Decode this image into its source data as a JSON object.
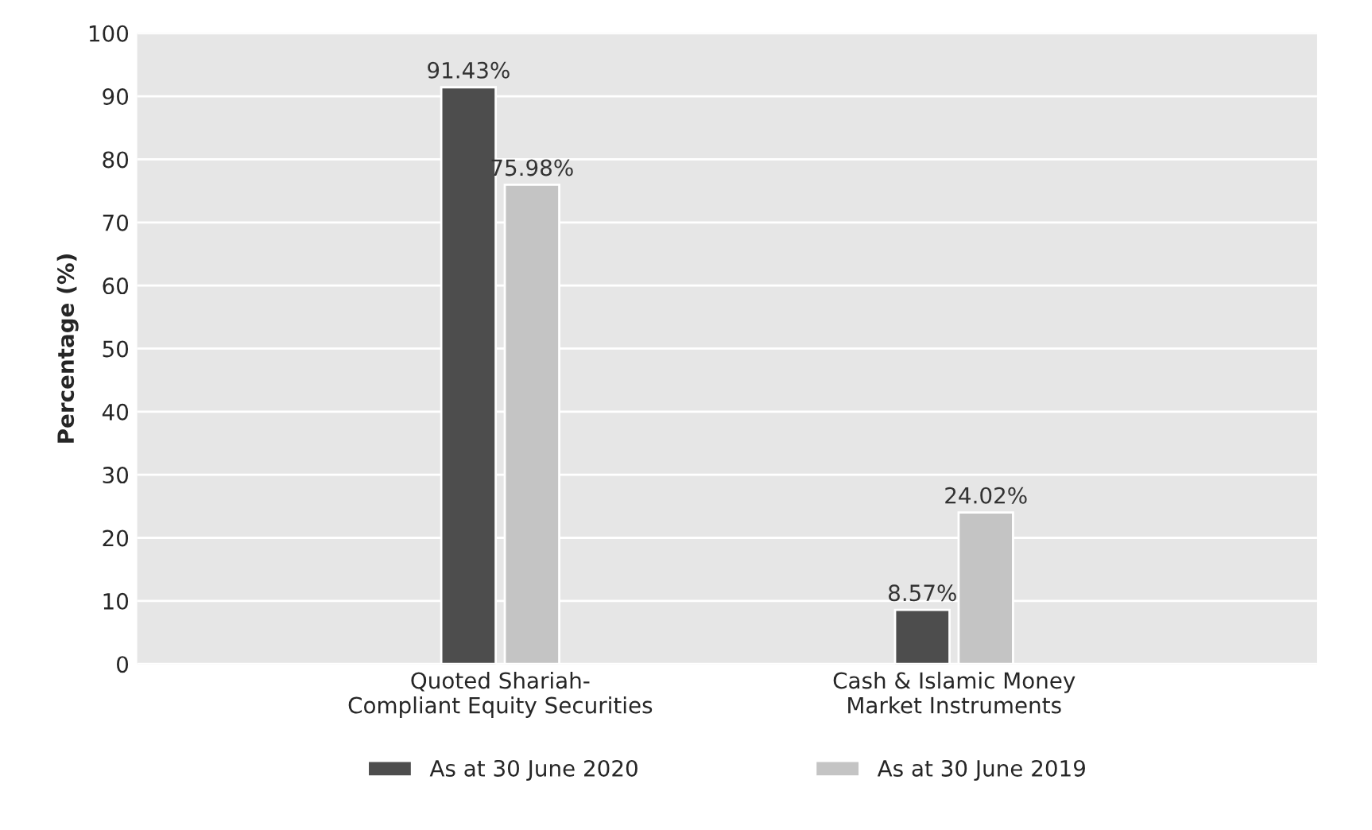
{
  "chart_data": {
    "type": "bar",
    "ylabel": "Percentage (%)",
    "categories": [
      "Quoted Shariah-\nCompliant Equity Securities",
      "Cash & Islamic Money\nMarket Instruments"
    ],
    "series": [
      {
        "name": "As at 30 June 2020",
        "color": "#4d4d4d",
        "values": [
          91.43,
          8.57
        ],
        "value_labels": [
          "91.43%",
          "8.57%"
        ]
      },
      {
        "name": "As at 30 June 2019",
        "color": "#c4c4c4",
        "values": [
          75.98,
          24.02
        ],
        "value_labels": [
          "75.98%",
          "24.02%"
        ]
      }
    ],
    "ylim": [
      0,
      100
    ],
    "yticks": [
      0,
      10,
      20,
      30,
      40,
      50,
      60,
      70,
      80,
      90,
      100
    ],
    "grid": "y",
    "legend": "bottom"
  }
}
